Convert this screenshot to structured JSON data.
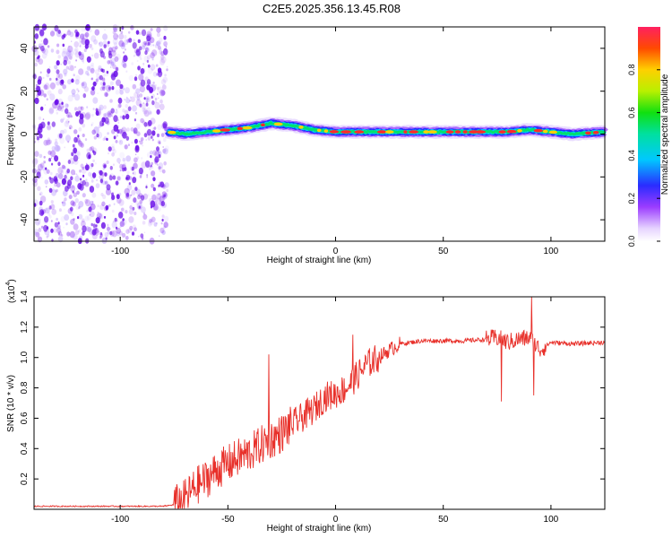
{
  "title": "C2E5.2025.356.13.45.R08",
  "colors": {
    "line": "#e8302a",
    "axis": "#000000",
    "noise": "#7a1cf0",
    "trace_hot": "#ff2a2a",
    "trace_mid": "#00e070",
    "trace_edge": "#1a2cff"
  },
  "chart_data": [
    {
      "type": "heatmap",
      "title": "C2E5.2025.356.13.45.R08",
      "xlabel": "Height of straight line (km)",
      "ylabel": "Frequency (Hz)",
      "xlim": [
        -140,
        125
      ],
      "ylim": [
        -50,
        50
      ],
      "xticks": [
        -100,
        -50,
        0,
        50,
        100
      ],
      "yticks": [
        -40,
        -20,
        0,
        20,
        40
      ],
      "colorbar": {
        "label": "Normalized spectral amplitude",
        "range": [
          0,
          1
        ],
        "ticks": [
          "0.0",
          "0.2",
          "0.4",
          "0.6",
          "0.8"
        ]
      },
      "noise_region_x": [
        -140,
        -78
      ],
      "ridge": {
        "x": [
          -78,
          -70,
          -60,
          -50,
          -40,
          -30,
          -20,
          -10,
          0,
          10,
          20,
          40,
          60,
          80,
          90,
          100,
          110,
          125
        ],
        "freq": [
          1,
          0,
          1,
          2,
          3,
          5,
          4,
          2,
          1,
          1,
          1,
          1,
          1,
          1,
          2,
          1,
          0,
          1
        ],
        "amplitude": [
          0.5,
          0.6,
          0.7,
          0.75,
          0.8,
          0.85,
          0.8,
          0.9,
          0.85,
          0.8,
          0.85,
          0.85,
          0.9,
          0.95,
          0.9,
          0.85,
          0.6,
          0.8
        ]
      }
    },
    {
      "type": "line",
      "xlabel": "Height of straight line (km)",
      "ylabel": "SNR (10 * v/v)",
      "scale_label": "(x10",
      "scale_exp": "4",
      "xlim": [
        -140,
        125
      ],
      "ylim": [
        0,
        1.4
      ],
      "xticks": [
        -100,
        -50,
        0,
        50,
        100
      ],
      "yticks": [
        "0.2",
        "0.4",
        "0.6",
        "0.8",
        "1.0",
        "1.2",
        "1.4"
      ],
      "series": [
        {
          "name": "SNR",
          "x": [
            -140,
            -120,
            -100,
            -80,
            -75,
            -70,
            -65,
            -60,
            -55,
            -50,
            -45,
            -40,
            -35,
            -30,
            -25,
            -20,
            -15,
            -10,
            -5,
            0,
            5,
            10,
            15,
            20,
            25,
            30,
            35,
            40,
            50,
            60,
            70,
            75,
            80,
            85,
            90,
            95,
            100,
            110,
            125
          ],
          "values": [
            0.02,
            0.02,
            0.02,
            0.02,
            0.03,
            0.07,
            0.15,
            0.2,
            0.26,
            0.3,
            0.34,
            0.37,
            0.42,
            0.46,
            0.5,
            0.56,
            0.61,
            0.66,
            0.74,
            0.76,
            0.8,
            0.88,
            0.96,
            1.0,
            1.05,
            1.09,
            1.1,
            1.11,
            1.11,
            1.11,
            1.12,
            1.13,
            1.1,
            1.12,
            1.13,
            1.05,
            1.1,
            1.09,
            1.1
          ]
        }
      ],
      "spikes": [
        {
          "x": -31,
          "value": 1.02
        },
        {
          "x": 8,
          "value": 1.15
        },
        {
          "x": 77,
          "value": 0.71
        },
        {
          "x": 91,
          "value": 1.4
        },
        {
          "x": 92,
          "value": 0.75
        }
      ]
    }
  ]
}
